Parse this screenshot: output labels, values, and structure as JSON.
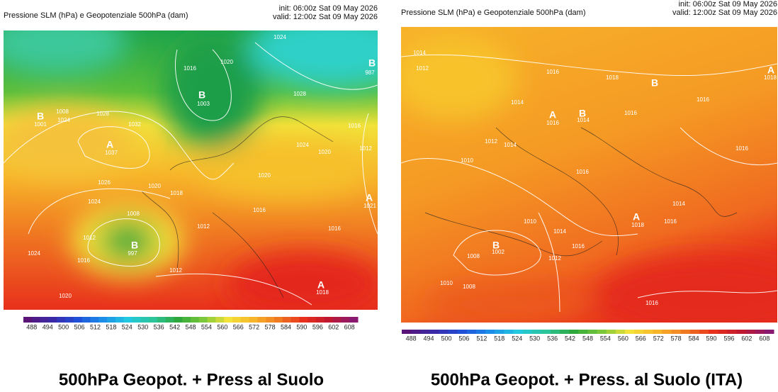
{
  "panels": [
    {
      "title": "Pressione SLM (hPa) e Geopotenziale 500hPa (dam)",
      "init": "init: 06:00z Sat 09 May 2026",
      "valid": "valid: 12:00z Sat 09 May 2026",
      "map_labels": [
        "A",
        "1037",
        "B",
        "1003",
        "B",
        "997",
        "A",
        "1018",
        "B",
        "987",
        "A",
        "1021",
        "B",
        "1001",
        "1024",
        "1020",
        "1016",
        "1028",
        "1032",
        "1028",
        "1024",
        "1008",
        "1026",
        "1024",
        "1020",
        "1018",
        "1008",
        "1012",
        "1016",
        "1024",
        "1020",
        "1012",
        "1012",
        "1016",
        "1020",
        "1024",
        "1016",
        "1012",
        "1020",
        "1016"
      ],
      "colorbar_ticks": [
        488,
        494,
        500,
        506,
        512,
        518,
        524,
        530,
        536,
        542,
        548,
        554,
        560,
        566,
        572,
        578,
        584,
        590,
        596,
        602,
        608
      ],
      "caption": "500hPa Geopot. + Press al Suolo"
    },
    {
      "title": "Pressione SLM (hPa) e Geopotenziale 500hPa (dam)",
      "init": "init: 06:00z Sat 09 May 2026",
      "valid": "valid: 12:00z Sat 09 May 2026",
      "map_labels": [
        "1014",
        "1012",
        "1016",
        "1018",
        "B",
        "1014",
        "1016",
        "A",
        "1016",
        "B",
        "1014",
        "1016",
        "1012",
        "1014",
        "1016",
        "1010",
        "1016",
        "A",
        "1018",
        "1014",
        "1016",
        "B",
        "1002",
        "1010",
        "1014",
        "1012",
        "1016",
        "1008",
        "1008",
        "1010",
        "1016",
        "A",
        "1018"
      ],
      "colorbar_ticks": [
        488,
        494,
        500,
        506,
        512,
        518,
        524,
        530,
        536,
        542,
        548,
        554,
        560,
        566,
        572,
        578,
        584,
        590,
        596,
        602,
        608
      ],
      "caption": "500hPa Geopot. + Press. al Suolo (ITA)"
    }
  ]
}
